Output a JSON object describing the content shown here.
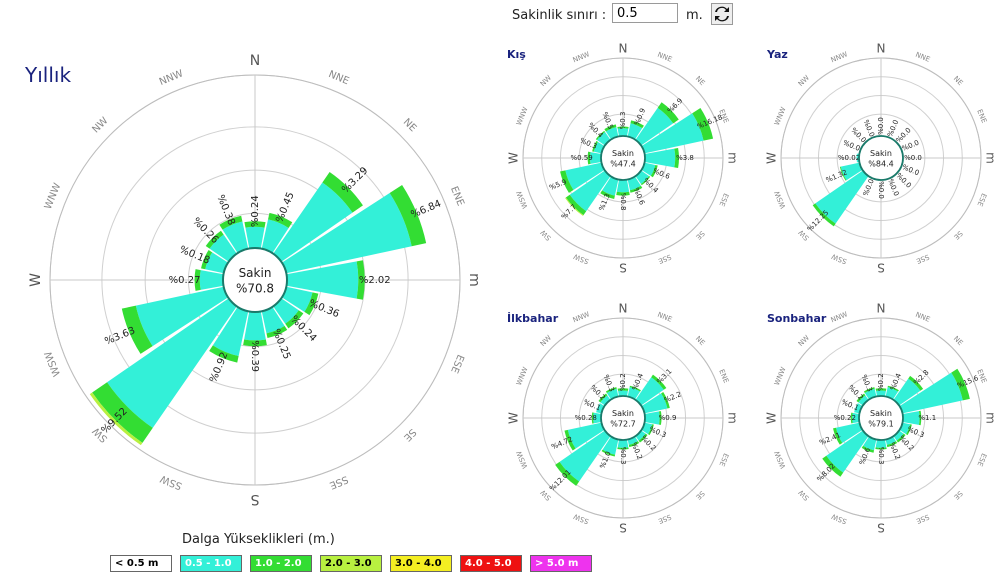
{
  "controls": {
    "threshold_label": "Sakinlik sınırı :",
    "threshold_value": "0.5",
    "threshold_unit": "m.",
    "refresh_icon": "refresh-icon"
  },
  "legend": {
    "title": "Dalga Yükseklikleri (m.)",
    "items": [
      {
        "label": "< 0.5 m",
        "color": "#ffffff",
        "text_color": "#000000"
      },
      {
        "label": "0.5 - 1.0",
        "color": "#33f0d8",
        "text_color": "#ffffff"
      },
      {
        "label": "1.0 - 2.0",
        "color": "#33dd33",
        "text_color": "#ffffff"
      },
      {
        "label": "2.0 - 3.0",
        "color": "#b8f040",
        "text_color": "#000000"
      },
      {
        "label": "3.0 - 4.0",
        "color": "#f4ee22",
        "text_color": "#000000"
      },
      {
        "label": "4.0 - 5.0",
        "color": "#ee1111",
        "text_color": "#ffffff"
      },
      {
        "label": "> 5.0 m",
        "color": "#ee33ee",
        "text_color": "#ffffff"
      }
    ]
  },
  "chart_data": [
    {
      "type": "wind-rose",
      "title": "Yıllık",
      "center_label": "Sakin",
      "center_value": "%70.8",
      "directions": [
        "N",
        "NNE",
        "NE",
        "ENE",
        "E",
        "ESE",
        "SE",
        "SSE",
        "S",
        "SSW",
        "SW",
        "WSW",
        "W",
        "WNW",
        "NW",
        "NNW"
      ],
      "direction_labels": [
        "N",
        "NNE",
        "NE",
        "ENE",
        "m",
        "ESE",
        "SE",
        "SSE",
        "S",
        "SSW",
        "SW",
        "WSW",
        "W",
        "WNW",
        "NW",
        "NNW"
      ],
      "labels": [
        "%0.24",
        "%0.45",
        "%3.29",
        "%6.84",
        "%2.02",
        "%0.36",
        "%0.24",
        "%0.25",
        "%0.39",
        "%0.92",
        "%9.52",
        "%3.63",
        "%0.27",
        "%0.18",
        "%0.26",
        "%0.38"
      ],
      "radial_max": 10,
      "bins": [
        [
          0.15,
          0.09
        ],
        [
          0.3,
          0.15
        ],
        [
          2.5,
          0.79
        ],
        [
          5.5,
          1.34
        ],
        [
          1.7,
          0.32
        ],
        [
          0.24,
          0.12
        ],
        [
          0.15,
          0.09
        ],
        [
          0.17,
          0.08
        ],
        [
          0.27,
          0.12
        ],
        [
          0.7,
          0.22
        ],
        [
          7.3,
          1.9,
          0.32
        ],
        [
          2.7,
          0.93
        ],
        [
          0.18,
          0.09
        ],
        [
          0.12,
          0.06
        ],
        [
          0.18,
          0.08
        ],
        [
          0.26,
          0.12
        ]
      ]
    },
    {
      "type": "wind-rose",
      "title": "Kış",
      "center_label": "Sakin",
      "center_value": "%47.4",
      "directions": [
        "N",
        "NNE",
        "NE",
        "ENE",
        "E",
        "ESE",
        "SE",
        "SSE",
        "S",
        "SSW",
        "SW",
        "WSW",
        "W",
        "WNW",
        "NW",
        "NNW"
      ],
      "direction_labels": [
        "N",
        "NNE",
        "NE",
        "ENE",
        "m",
        "ESE",
        "SE",
        "SSE",
        "S",
        "SSW",
        "SW",
        "WSW",
        "W",
        "WNW",
        "NW",
        "NNW"
      ],
      "labels": [
        "%0.3",
        "%0.9",
        "%6.9",
        "%16.18",
        "%3.8",
        "%0.6",
        "%0.4",
        "%0.6",
        "%0.8",
        "%1.3",
        "%7.7",
        "%5.9",
        "%0.59",
        "%0.3",
        "%0.4",
        "%0.5"
      ],
      "radial_max": 20,
      "bins": [
        [
          0.2,
          0.1
        ],
        [
          0.6,
          0.3
        ],
        [
          5.0,
          1.9
        ],
        [
          12.0,
          4.18
        ],
        [
          3.0,
          0.8
        ],
        [
          0.4,
          0.2
        ],
        [
          0.3,
          0.1
        ],
        [
          0.4,
          0.2
        ],
        [
          0.5,
          0.3
        ],
        [
          0.9,
          0.4
        ],
        [
          6.0,
          1.4,
          0.3
        ],
        [
          4.5,
          1.4
        ],
        [
          0.4,
          0.19
        ],
        [
          0.2,
          0.1
        ],
        [
          0.3,
          0.1
        ],
        [
          0.3,
          0.2
        ]
      ]
    },
    {
      "type": "wind-rose",
      "title": "Yaz",
      "center_label": "Sakin",
      "center_value": "%84.4",
      "directions": [
        "N",
        "NNE",
        "NE",
        "ENE",
        "E",
        "ESE",
        "SE",
        "SSE",
        "S",
        "SSW",
        "SW",
        "WSW",
        "W",
        "WNW",
        "NW",
        "NNW"
      ],
      "direction_labels": [
        "N",
        "NNE",
        "NE",
        "ENE",
        "m",
        "ESE",
        "SE",
        "SSE",
        "S",
        "SSW",
        "SW",
        "WSW",
        "W",
        "WNW",
        "NW",
        "NNW"
      ],
      "labels": [
        "%0.0",
        "%0.0",
        "%0.0",
        "%0.0",
        "%0.0",
        "%0.0",
        "%0.0",
        "%0.0",
        "%0.0",
        "%0.0",
        "%12.25",
        "%1.32",
        "%0.02",
        "%0.0",
        "%0.0",
        "%0.0"
      ],
      "radial_max": 20,
      "bins": [
        [
          0.0
        ],
        [
          0.0
        ],
        [
          0.0
        ],
        [
          0.0
        ],
        [
          0.0
        ],
        [
          0.0
        ],
        [
          0.0
        ],
        [
          0.0
        ],
        [
          0.0
        ],
        [
          0.0
        ],
        [
          11.0,
          1.25
        ],
        [
          1.2,
          0.12
        ],
        [
          0.02
        ],
        [
          0.0
        ],
        [
          0.0
        ],
        [
          0.0
        ]
      ]
    },
    {
      "type": "wind-rose",
      "title": "İlkbahar",
      "center_label": "Sakin",
      "center_value": "%72.7",
      "directions": [
        "N",
        "NNE",
        "NE",
        "ENE",
        "E",
        "ESE",
        "SE",
        "SSE",
        "S",
        "SSW",
        "SW",
        "WSW",
        "W",
        "WNW",
        "NW",
        "NNW"
      ],
      "direction_labels": [
        "N",
        "NNE",
        "NE",
        "ENE",
        "m",
        "ESE",
        "SE",
        "SSE",
        "S",
        "SSW",
        "SW",
        "WSW",
        "W",
        "WNW",
        "NW",
        "NNW"
      ],
      "labels": [
        "%0.2",
        "%0.4",
        "%3.1",
        "%2.2",
        "%0.9",
        "%0.3",
        "%0.2",
        "%0.2",
        "%0.3",
        "%1.0",
        "%12.01",
        "%4.72",
        "%0.28",
        "%0.1",
        "%0.2",
        "%0.3"
      ],
      "radial_max": 20,
      "bins": [
        [
          0.1,
          0.1
        ],
        [
          0.3,
          0.1
        ],
        [
          2.5,
          0.6
        ],
        [
          1.8,
          0.4
        ],
        [
          0.7,
          0.2
        ],
        [
          0.2,
          0.1
        ],
        [
          0.1,
          0.1
        ],
        [
          0.1,
          0.1
        ],
        [
          0.2,
          0.1
        ],
        [
          0.8,
          0.2
        ],
        [
          10.0,
          2.01
        ],
        [
          3.9,
          0.82
        ],
        [
          0.2,
          0.08
        ],
        [
          0.1
        ],
        [
          0.1,
          0.1
        ],
        [
          0.2,
          0.1
        ]
      ]
    },
    {
      "type": "wind-rose",
      "title": "Sonbahar",
      "center_label": "Sakin",
      "center_value": "%79.1",
      "directions": [
        "N",
        "NNE",
        "NE",
        "ENE",
        "E",
        "ESE",
        "SE",
        "SSE",
        "S",
        "SSW",
        "SW",
        "WSW",
        "W",
        "WNW",
        "NW",
        "NNW"
      ],
      "direction_labels": [
        "N",
        "NNE",
        "NE",
        "ENE",
        "m",
        "ESE",
        "SE",
        "SSE",
        "S",
        "SSW",
        "SW",
        "WSW",
        "W",
        "WNW",
        "NW",
        "NNW"
      ],
      "labels": [
        "%0.2",
        "%0.4",
        "%2.8",
        "%15.6",
        "%1.1",
        "%0.3",
        "%0.2",
        "%0.2",
        "%0.3",
        "%0.6",
        "%8.02",
        "%2.41",
        "%0.22",
        "%0.1",
        "%0.2",
        "%0.3"
      ],
      "radial_max": 20,
      "bins": [
        [
          0.1,
          0.1
        ],
        [
          0.3,
          0.1
        ],
        [
          2.2,
          0.6
        ],
        [
          12.5,
          3.1
        ],
        [
          0.9,
          0.2
        ],
        [
          0.2,
          0.1
        ],
        [
          0.1,
          0.1
        ],
        [
          0.1,
          0.1
        ],
        [
          0.2,
          0.1
        ],
        [
          0.4,
          0.2
        ],
        [
          6.5,
          1.52
        ],
        [
          1.9,
          0.51
        ],
        [
          0.15,
          0.07
        ],
        [
          0.1
        ],
        [
          0.1,
          0.1
        ],
        [
          0.2,
          0.1
        ]
      ]
    }
  ]
}
